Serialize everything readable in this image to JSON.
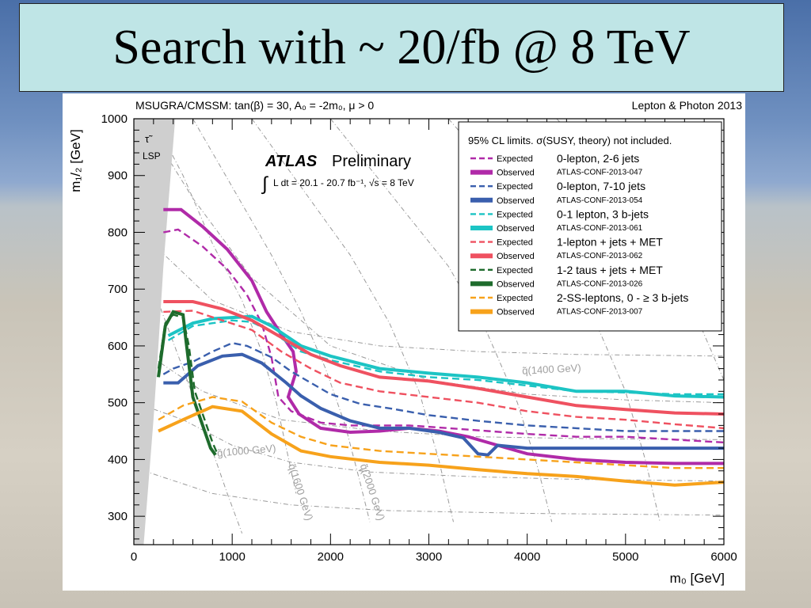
{
  "slide": {
    "title": "Search with ~ 20/fb @ 8 TeV"
  },
  "chart_data": {
    "type": "line",
    "model_label": "MSUGRA/CMSSM: tan(β) = 30, A₀ = -2m₀, μ > 0",
    "conference": "Lepton & Photon 2013",
    "experiment": "ATLAS",
    "status": "Preliminary",
    "lumi_text": "L dt = 20.1 - 20.7 fb⁻¹, √s = 8 TeV",
    "legend_header": "95% CL limits. σ(SUSY, theory) not included.",
    "lsp_label": "LSP",
    "stau_label": "τ̃",
    "xlabel": "m₀ [GeV]",
    "ylabel": "m₁/₂ [GeV]",
    "xlim": [
      0,
      6000
    ],
    "ylim": [
      250,
      1000
    ],
    "xticks": [
      "0",
      "1000",
      "2000",
      "3000",
      "4000",
      "5000",
      "6000"
    ],
    "yticks": [
      "300",
      "400",
      "500",
      "600",
      "700",
      "800",
      "900",
      "1000"
    ],
    "expected_label": "Expected",
    "observed_label": "Observed",
    "grid_labels": [
      "q̃(1400 GeV)",
      "g̃(1000 GeV)",
      "q̃(1600 GeV)",
      "q̃(2000 GeV)"
    ],
    "series": [
      {
        "name": "0-lepton, 2-6 jets",
        "ref": "ATLAS-CONF-2013-047",
        "color": "#b02aa8",
        "expected": [
          [
            300,
            800
          ],
          [
            450,
            805
          ],
          [
            700,
            775
          ],
          [
            950,
            735
          ],
          [
            1150,
            690
          ],
          [
            1300,
            640
          ],
          [
            1400,
            580
          ],
          [
            1470,
            510
          ],
          [
            1600,
            485
          ],
          [
            1900,
            465
          ],
          [
            2200,
            460
          ],
          [
            2500,
            460
          ],
          [
            2800,
            460
          ],
          [
            3200,
            455
          ],
          [
            3600,
            450
          ],
          [
            4000,
            445
          ],
          [
            4500,
            440
          ],
          [
            5000,
            440
          ],
          [
            5500,
            435
          ],
          [
            6000,
            430
          ]
        ],
        "observed": [
          [
            300,
            840
          ],
          [
            480,
            840
          ],
          [
            700,
            810
          ],
          [
            950,
            770
          ],
          [
            1200,
            715
          ],
          [
            1350,
            660
          ],
          [
            1500,
            620
          ],
          [
            1620,
            590
          ],
          [
            1650,
            555
          ],
          [
            1570,
            510
          ],
          [
            1680,
            480
          ],
          [
            1900,
            455
          ],
          [
            2200,
            448
          ],
          [
            2500,
            450
          ],
          [
            2800,
            455
          ],
          [
            3100,
            450
          ],
          [
            3400,
            440
          ],
          [
            3700,
            425
          ],
          [
            4000,
            410
          ],
          [
            4500,
            400
          ],
          [
            5000,
            395
          ],
          [
            5500,
            393
          ],
          [
            6000,
            393
          ]
        ]
      },
      {
        "name": "0-lepton, 7-10 jets",
        "ref": "ATLAS-CONF-2013-054",
        "color": "#3a5fad",
        "expected": [
          [
            300,
            550
          ],
          [
            400,
            560
          ],
          [
            600,
            572
          ],
          [
            800,
            590
          ],
          [
            1000,
            605
          ],
          [
            1150,
            600
          ],
          [
            1400,
            580
          ],
          [
            1600,
            555
          ],
          [
            1800,
            535
          ],
          [
            2000,
            515
          ],
          [
            2300,
            498
          ],
          [
            2600,
            490
          ],
          [
            3000,
            478
          ],
          [
            3500,
            468
          ],
          [
            4000,
            460
          ],
          [
            4500,
            455
          ],
          [
            5000,
            450
          ],
          [
            5500,
            450
          ],
          [
            6000,
            450
          ]
        ],
        "observed": [
          [
            300,
            535
          ],
          [
            450,
            535
          ],
          [
            650,
            565
          ],
          [
            900,
            582
          ],
          [
            1100,
            585
          ],
          [
            1300,
            570
          ],
          [
            1550,
            535
          ],
          [
            1700,
            512
          ],
          [
            1900,
            490
          ],
          [
            2200,
            468
          ],
          [
            2500,
            455
          ],
          [
            2800,
            455
          ],
          [
            3100,
            448
          ],
          [
            3350,
            438
          ],
          [
            3500,
            410
          ],
          [
            3600,
            408
          ],
          [
            3700,
            425
          ],
          [
            4000,
            420
          ],
          [
            4500,
            420
          ],
          [
            5000,
            420
          ],
          [
            5500,
            420
          ],
          [
            6000,
            420
          ]
        ]
      },
      {
        "name": "0-1 lepton, 3 b-jets",
        "ref": "ATLAS-CONF-2013-061",
        "color": "#1cc4c4",
        "expected": [
          [
            350,
            610
          ],
          [
            600,
            635
          ],
          [
            800,
            640
          ],
          [
            1000,
            645
          ],
          [
            1200,
            642
          ],
          [
            1400,
            625
          ],
          [
            1700,
            590
          ],
          [
            2000,
            575
          ],
          [
            2500,
            555
          ],
          [
            3000,
            545
          ],
          [
            3500,
            540
          ],
          [
            4000,
            530
          ],
          [
            4500,
            520
          ],
          [
            5000,
            518
          ],
          [
            5500,
            515
          ],
          [
            6000,
            515
          ]
        ],
        "observed": [
          [
            350,
            618
          ],
          [
            600,
            640
          ],
          [
            800,
            648
          ],
          [
            1000,
            650
          ],
          [
            1200,
            652
          ],
          [
            1400,
            635
          ],
          [
            1700,
            600
          ],
          [
            2000,
            582
          ],
          [
            2500,
            560
          ],
          [
            3000,
            552
          ],
          [
            3500,
            545
          ],
          [
            4000,
            535
          ],
          [
            4500,
            520
          ],
          [
            5000,
            520
          ],
          [
            5500,
            512
          ],
          [
            6000,
            510
          ]
        ]
      },
      {
        "name": "1-lepton + jets + MET",
        "ref": "ATLAS-CONF-2013-062",
        "color": "#ef5160",
        "expected": [
          [
            300,
            660
          ],
          [
            600,
            662
          ],
          [
            900,
            645
          ],
          [
            1200,
            628
          ],
          [
            1500,
            590
          ],
          [
            1800,
            560
          ],
          [
            2100,
            535
          ],
          [
            2500,
            520
          ],
          [
            3000,
            510
          ],
          [
            3500,
            500
          ],
          [
            4000,
            485
          ],
          [
            4500,
            475
          ],
          [
            5000,
            470
          ],
          [
            5500,
            462
          ],
          [
            6000,
            455
          ]
        ],
        "observed": [
          [
            300,
            678
          ],
          [
            600,
            678
          ],
          [
            900,
            665
          ],
          [
            1200,
            645
          ],
          [
            1500,
            615
          ],
          [
            1800,
            585
          ],
          [
            2100,
            565
          ],
          [
            2500,
            545
          ],
          [
            3000,
            538
          ],
          [
            3500,
            525
          ],
          [
            4000,
            510
          ],
          [
            4500,
            495
          ],
          [
            5000,
            488
          ],
          [
            5500,
            482
          ],
          [
            6000,
            480
          ]
        ]
      },
      {
        "name": "1-2 taus + jets + MET",
        "ref": "ATLAS-CONF-2013-026",
        "color": "#1e6b2c",
        "expected": [
          [
            250,
            560
          ],
          [
            320,
            640
          ],
          [
            400,
            655
          ],
          [
            500,
            650
          ],
          [
            560,
            600
          ],
          [
            620,
            520
          ],
          [
            700,
            480
          ],
          [
            800,
            430
          ],
          [
            850,
            410
          ]
        ],
        "observed": [
          [
            250,
            545
          ],
          [
            320,
            635
          ],
          [
            400,
            660
          ],
          [
            500,
            655
          ],
          [
            530,
            610
          ],
          [
            600,
            510
          ],
          [
            680,
            470
          ],
          [
            780,
            420
          ],
          [
            830,
            408
          ]
        ]
      },
      {
        "name": "2-SS-leptons, 0 - ≥ 3 b-jets",
        "ref": "ATLAS-CONF-2013-007",
        "color": "#f7a21b",
        "expected": [
          [
            250,
            470
          ],
          [
            500,
            495
          ],
          [
            800,
            510
          ],
          [
            1100,
            502
          ],
          [
            1400,
            465
          ],
          [
            1700,
            440
          ],
          [
            2000,
            425
          ],
          [
            2500,
            415
          ],
          [
            3000,
            410
          ],
          [
            3500,
            405
          ],
          [
            4000,
            400
          ],
          [
            4500,
            395
          ],
          [
            5000,
            390
          ],
          [
            5500,
            385
          ],
          [
            6000,
            385
          ]
        ],
        "observed": [
          [
            250,
            450
          ],
          [
            500,
            470
          ],
          [
            800,
            493
          ],
          [
            1100,
            485
          ],
          [
            1400,
            445
          ],
          [
            1700,
            415
          ],
          [
            2000,
            405
          ],
          [
            2500,
            395
          ],
          [
            3000,
            390
          ],
          [
            3500,
            382
          ],
          [
            4000,
            375
          ],
          [
            4500,
            370
          ],
          [
            5000,
            362
          ],
          [
            5500,
            355
          ],
          [
            6000,
            360
          ]
        ]
      }
    ]
  }
}
